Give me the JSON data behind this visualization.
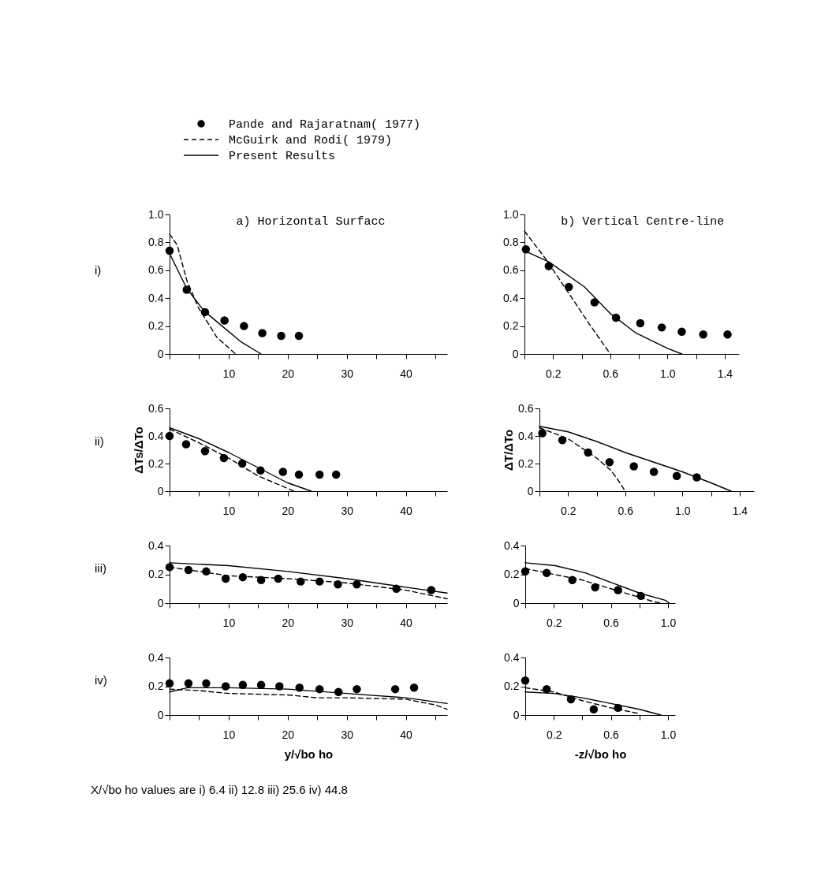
{
  "chart_data": [
    {
      "type": "line",
      "title": "a) Horizontal Surfacc",
      "legend": "top",
      "annotations": [
        "i)"
      ],
      "xlim": [
        0,
        47
      ],
      "ylim": [
        0,
        1
      ],
      "xticks": [
        {
          "value": 0,
          "label": null
        },
        {
          "value": 5,
          "label": null
        },
        10,
        {
          "value": 15,
          "label": null
        },
        20,
        {
          "value": 25,
          "label": null
        },
        30,
        {
          "value": 35,
          "label": null
        },
        40,
        {
          "value": 45,
          "label": null
        }
      ],
      "yticks": [
        0,
        0.2,
        0.4,
        0.6,
        0.8,
        {
          "value": 1,
          "label": "1.0"
        }
      ],
      "series": [
        {
          "name": "Pande and Rajaratnam( 1977)",
          "type": "scatter",
          "marker": "circle",
          "color": "#000000",
          "x": [
            0,
            2.9,
            6,
            9.3,
            12.6,
            15.7,
            18.9,
            21.9
          ],
          "values": [
            0.74,
            0.46,
            0.3,
            0.24,
            0.2,
            0.15,
            0.13,
            0.13
          ]
        },
        {
          "name": "McGuirk and Rodi( 1979)",
          "type": "line",
          "line_style": "dashed",
          "color": "#000000",
          "x": [
            0,
            1.3,
            2.9,
            4.9,
            8,
            10.9,
            11.2
          ],
          "values": [
            0.86,
            0.78,
            0.53,
            0.33,
            0.12,
            0.01,
            0
          ]
        },
        {
          "name": "Present Results",
          "type": "line",
          "line_style": "solid",
          "color": "#000000",
          "x": [
            0,
            2.9,
            5.8,
            8.9,
            12,
            15.1,
            15.5
          ],
          "values": [
            0.72,
            0.47,
            0.31,
            0.2,
            0.09,
            0.01,
            0
          ]
        }
      ]
    },
    {
      "type": "line",
      "title": "b) Vertical Centre-line",
      "xlim": [
        0,
        1.5
      ],
      "ylim": [
        0,
        1
      ],
      "xticks": [
        {
          "value": 0,
          "label": null
        },
        0.2,
        {
          "value": 0.4,
          "label": null
        },
        0.6,
        {
          "value": 0.8,
          "label": null
        },
        {
          "value": 1,
          "label": "1.0"
        },
        {
          "value": 1.2,
          "label": null
        },
        1.4
      ],
      "yticks": [
        0,
        0.2,
        0.4,
        0.6,
        0.8,
        {
          "value": 1,
          "label": "1.0"
        }
      ],
      "series": [
        {
          "type": "scatter",
          "marker": "circle",
          "color": "#000000",
          "x": [
            0.01,
            0.17,
            0.31,
            0.49,
            0.64,
            0.81,
            0.96,
            1.1,
            1.25,
            1.42
          ],
          "values": [
            0.75,
            0.63,
            0.48,
            0.37,
            0.26,
            0.22,
            0.19,
            0.16,
            0.14,
            0.14
          ]
        },
        {
          "type": "line",
          "line_style": "dashed",
          "color": "#000000",
          "x": [
            0,
            0.15,
            0.3,
            0.45,
            0.6
          ],
          "values": [
            0.88,
            0.68,
            0.45,
            0.22,
            0
          ]
        },
        {
          "type": "line",
          "line_style": "solid",
          "color": "#000000",
          "x": [
            0,
            0.17,
            0.42,
            0.6,
            0.78,
            1.0,
            1.1
          ],
          "values": [
            0.74,
            0.66,
            0.48,
            0.29,
            0.15,
            0.04,
            0
          ]
        }
      ]
    },
    {
      "type": "line",
      "ylabel": "ΔTs/ΔTo",
      "annotations": [
        "ii)"
      ],
      "xlim": [
        0,
        47
      ],
      "ylim": [
        0,
        0.6
      ],
      "xticks": [
        {
          "value": 0,
          "label": null
        },
        {
          "value": 5,
          "label": null
        },
        10,
        {
          "value": 15,
          "label": null
        },
        20,
        {
          "value": 25,
          "label": null
        },
        30,
        {
          "value": 35,
          "label": null
        },
        40,
        {
          "value": 45,
          "label": null
        }
      ],
      "yticks": [
        0,
        0.2,
        0.4,
        0.6
      ],
      "series": [
        {
          "type": "scatter",
          "marker": "circle",
          "color": "#000000",
          "x": [
            0,
            2.8,
            6,
            9.2,
            12.3,
            15.4,
            19.2,
            21.9,
            25.4,
            28.2
          ],
          "values": [
            0.4,
            0.34,
            0.29,
            0.24,
            0.2,
            0.15,
            0.14,
            0.12,
            0.12,
            0.12
          ]
        },
        {
          "type": "line",
          "line_style": "dashed",
          "color": "#000000",
          "x": [
            0,
            5,
            10,
            15,
            20,
            21
          ],
          "values": [
            0.45,
            0.35,
            0.24,
            0.11,
            0.02,
            0
          ]
        },
        {
          "type": "line",
          "line_style": "solid",
          "color": "#000000",
          "x": [
            0,
            5,
            10,
            15,
            20,
            24
          ],
          "values": [
            0.46,
            0.38,
            0.28,
            0.17,
            0.06,
            0
          ]
        }
      ]
    },
    {
      "type": "line",
      "ylabel": "ΔT/ΔTo",
      "xlim": [
        0,
        1.5
      ],
      "ylim": [
        0,
        0.6
      ],
      "xticks": [
        {
          "value": 0,
          "label": null
        },
        0.2,
        {
          "value": 0.4,
          "label": null
        },
        0.6,
        {
          "value": 0.8,
          "label": null
        },
        {
          "value": 1,
          "label": "1.0"
        },
        {
          "value": 1.2,
          "label": null
        },
        1.4
      ],
      "yticks": [
        0,
        0.2,
        0.4,
        0.6
      ],
      "series": [
        {
          "type": "scatter",
          "marker": "circle",
          "color": "#000000",
          "x": [
            0.02,
            0.16,
            0.34,
            0.49,
            0.66,
            0.8,
            0.96,
            1.1
          ],
          "values": [
            0.42,
            0.37,
            0.28,
            0.21,
            0.18,
            0.14,
            0.11,
            0.1
          ]
        },
        {
          "type": "line",
          "line_style": "dashed",
          "color": "#000000",
          "x": [
            0,
            0.2,
            0.4,
            0.5,
            0.55,
            0.6
          ],
          "values": [
            0.46,
            0.38,
            0.24,
            0.15,
            0.08,
            0
          ]
        },
        {
          "type": "line",
          "line_style": "solid",
          "color": "#000000",
          "x": [
            0,
            0.2,
            0.4,
            0.6,
            0.8,
            1.0,
            1.2,
            1.34
          ],
          "values": [
            0.47,
            0.43,
            0.36,
            0.28,
            0.21,
            0.14,
            0.06,
            0
          ]
        }
      ]
    },
    {
      "type": "line",
      "annotations": [
        "iii)"
      ],
      "xlim": [
        0,
        47
      ],
      "ylim": [
        0,
        0.4
      ],
      "xticks": [
        {
          "value": 0,
          "label": null
        },
        {
          "value": 5,
          "label": null
        },
        10,
        {
          "value": 15,
          "label": null
        },
        20,
        {
          "value": 25,
          "label": null
        },
        30,
        {
          "value": 35,
          "label": null
        },
        40,
        {
          "value": 45,
          "label": null
        }
      ],
      "yticks": [
        0,
        0.2,
        0.4
      ],
      "series": [
        {
          "type": "scatter",
          "marker": "circle",
          "color": "#000000",
          "x": [
            0,
            3.2,
            6.2,
            9.5,
            12.4,
            15.5,
            18.4,
            22.2,
            25.4,
            28.5,
            31.7,
            38.4,
            44.3
          ],
          "values": [
            0.25,
            0.23,
            0.22,
            0.17,
            0.18,
            0.16,
            0.17,
            0.15,
            0.15,
            0.13,
            0.13,
            0.1,
            0.09
          ]
        },
        {
          "type": "line",
          "line_style": "dashed",
          "color": "#000000",
          "x": [
            0,
            10,
            20,
            30,
            40,
            47
          ],
          "values": [
            0.25,
            0.19,
            0.17,
            0.14,
            0.09,
            0.03
          ]
        },
        {
          "type": "line",
          "line_style": "solid",
          "color": "#000000",
          "x": [
            0,
            10,
            20,
            30,
            40,
            47
          ],
          "values": [
            0.28,
            0.26,
            0.22,
            0.17,
            0.11,
            0.07
          ]
        }
      ]
    },
    {
      "type": "line",
      "xlim": [
        0,
        1.05
      ],
      "ylim": [
        0,
        0.4
      ],
      "xticks": [
        {
          "value": 0,
          "label": null
        },
        0.2,
        {
          "value": 0.4,
          "label": null
        },
        0.6,
        {
          "value": 0.8,
          "label": null
        },
        {
          "value": 1,
          "label": "1.0"
        }
      ],
      "yticks": [
        0,
        0.2,
        0.4
      ],
      "series": [
        {
          "type": "scatter",
          "marker": "circle",
          "color": "#000000",
          "x": [
            0,
            0.15,
            0.33,
            0.49,
            0.65,
            0.81
          ],
          "values": [
            0.22,
            0.21,
            0.16,
            0.11,
            0.09,
            0.05
          ]
        },
        {
          "type": "line",
          "line_style": "dashed",
          "color": "#000000",
          "x": [
            0,
            0.2,
            0.4,
            0.6,
            0.8,
            0.9,
            0.95
          ],
          "values": [
            0.24,
            0.2,
            0.16,
            0.1,
            0.04,
            0.01,
            0
          ]
        },
        {
          "type": "line",
          "line_style": "solid",
          "color": "#000000",
          "x": [
            0,
            0.21,
            0.42,
            0.61,
            0.8,
            0.98,
            1.01
          ],
          "values": [
            0.28,
            0.26,
            0.21,
            0.14,
            0.07,
            0.02,
            0
          ]
        }
      ]
    },
    {
      "type": "line",
      "xlabel": "y/√bo ho",
      "annotations": [
        "iv)",
        "X/√bo ho   values are     i) 6.4    ii) 12.8    iii) 25.6    iv) 44.8"
      ],
      "xlim": [
        0,
        47
      ],
      "ylim": [
        0,
        0.4
      ],
      "xticks": [
        {
          "value": 0,
          "label": null
        },
        {
          "value": 5,
          "label": null
        },
        10,
        {
          "value": 15,
          "label": null
        },
        20,
        {
          "value": 25,
          "label": null
        },
        30,
        {
          "value": 35,
          "label": null
        },
        40,
        {
          "value": 45,
          "label": null
        }
      ],
      "yticks": [
        0,
        0.2,
        0.4
      ],
      "series": [
        {
          "type": "scatter",
          "marker": "circle",
          "color": "#000000",
          "x": [
            0,
            3.2,
            6.2,
            9.5,
            12.4,
            15.5,
            18.6,
            22,
            25.4,
            28.6,
            31.7,
            38.2,
            41.4
          ],
          "values": [
            0.22,
            0.22,
            0.22,
            0.2,
            0.21,
            0.21,
            0.2,
            0.19,
            0.18,
            0.16,
            0.18,
            0.18,
            0.19
          ]
        },
        {
          "type": "line",
          "line_style": "dashed",
          "color": "#000000",
          "x": [
            0,
            5,
            10,
            20,
            25,
            30,
            40,
            45,
            47
          ],
          "values": [
            0.18,
            0.17,
            0.15,
            0.14,
            0.12,
            0.12,
            0.11,
            0.07,
            0.04
          ]
        },
        {
          "type": "line",
          "line_style": "solid",
          "color": "#000000",
          "x": [
            0,
            3,
            10,
            20,
            30,
            40,
            47
          ],
          "values": [
            0.16,
            0.19,
            0.19,
            0.18,
            0.15,
            0.12,
            0.08
          ]
        }
      ]
    },
    {
      "type": "line",
      "xlabel": "-z/√bo ho",
      "xlim": [
        0,
        1.05
      ],
      "ylim": [
        0,
        0.4
      ],
      "xticks": [
        {
          "value": 0,
          "label": null
        },
        0.2,
        {
          "value": 0.4,
          "label": null
        },
        0.6,
        {
          "value": 0.8,
          "label": null
        },
        {
          "value": 1,
          "label": "1.0"
        }
      ],
      "yticks": [
        0,
        0.2,
        0.4
      ],
      "series": [
        {
          "type": "scatter",
          "marker": "circle",
          "color": "#000000",
          "x": [
            0,
            0.15,
            0.32,
            0.48,
            0.65
          ],
          "values": [
            0.24,
            0.18,
            0.11,
            0.04,
            0.05
          ]
        },
        {
          "type": "line",
          "line_style": "dashed",
          "color": "#000000",
          "x": [
            0,
            0.2,
            0.4,
            0.6,
            0.8
          ],
          "values": [
            0.19,
            0.16,
            0.1,
            0.05,
            0.01
          ]
        },
        {
          "type": "line",
          "line_style": "solid",
          "color": "#000000",
          "x": [
            0,
            0.2,
            0.4,
            0.6,
            0.8,
            0.95
          ],
          "values": [
            0.16,
            0.15,
            0.12,
            0.08,
            0.04,
            0
          ]
        }
      ]
    }
  ]
}
